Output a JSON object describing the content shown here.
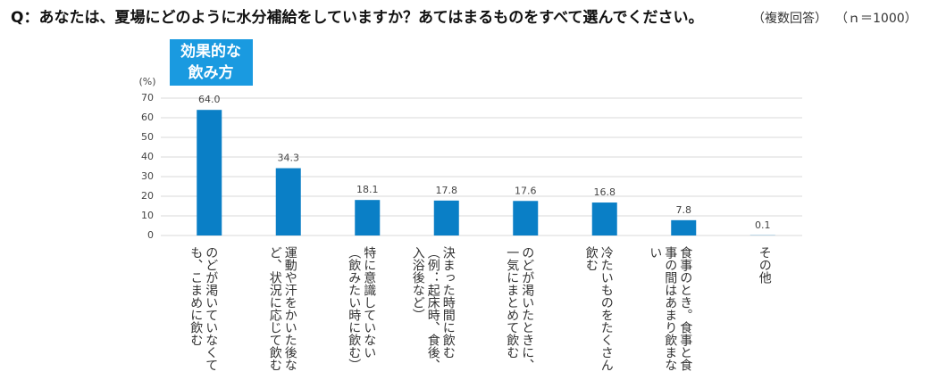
{
  "chart_data": {
    "type": "bar",
    "title": "Q：あなたは、夏場にどのように水分補給をしていますか？あてはまるものをすべて選んでください。",
    "subtitle": "（複数回答）",
    "sample_size": "（ｎ＝1000）",
    "annotation": [
      "効果的な",
      "飲み方"
    ],
    "y_label": "(%)",
    "categories": [
      "のどが渇いていなくても、こまめに飲む",
      "運動や汗をかいた後など、状況に応じて飲む",
      "特に意識していない（飲みたい時に飲む）",
      "決まった時間に飲む（例：起床時、食後、入浴後など）",
      "のどが渇いたときに、一気にまとめて飲む",
      "冷たいものをたくさん飲む",
      "食事のとき。食事と食事の間はあまり飲まない",
      "その他"
    ],
    "values": [
      64.0,
      34.3,
      18.1,
      17.8,
      17.6,
      16.8,
      7.8,
      0.1
    ],
    "value_labels": [
      "64.0",
      "34.3",
      "18.1",
      "17.8",
      "17.6",
      "16.8",
      "7.8",
      "0.1"
    ],
    "color": "#0a7fc6",
    "ylim": [
      0,
      70
    ],
    "yticks": [
      0,
      10,
      20,
      30,
      40,
      50,
      60,
      70
    ],
    "grid": true
  }
}
